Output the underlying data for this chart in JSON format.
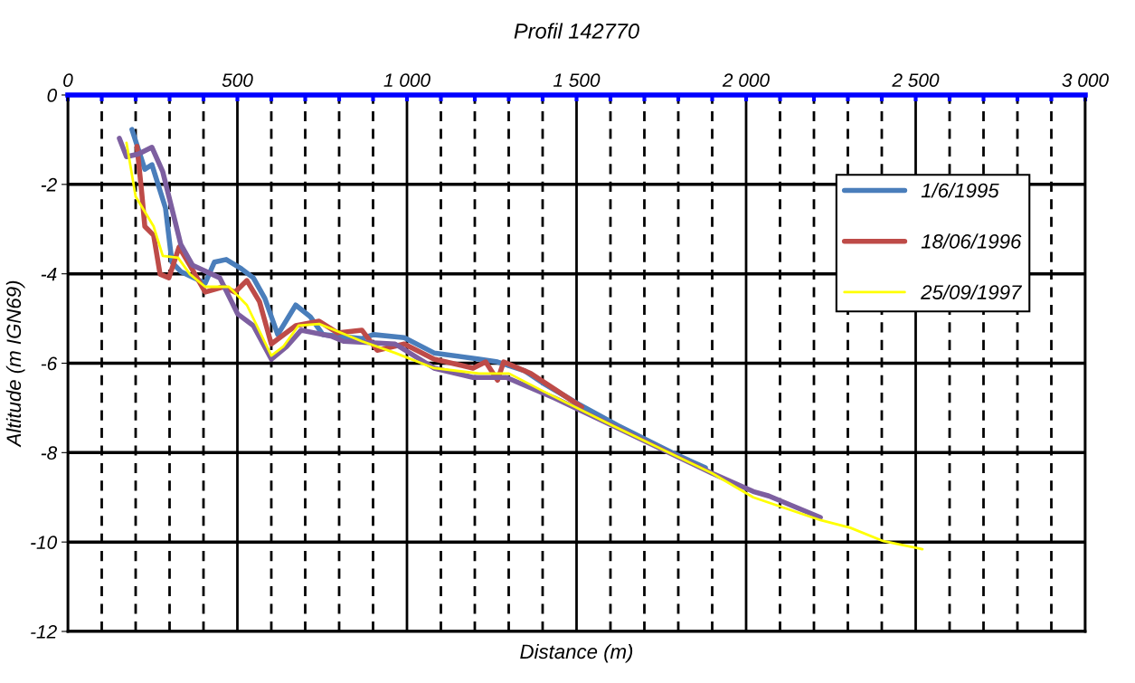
{
  "chart_data": {
    "type": "line",
    "title": "Profil 142770",
    "xlabel": "Distance (m)",
    "ylabel": "Altitude (m IGN69)",
    "xlim": [
      0,
      3000
    ],
    "ylim": [
      -12,
      0
    ],
    "xticks": [
      0,
      {
        "value": 100,
        "label": null
      },
      {
        "value": 200,
        "label": null
      },
      {
        "value": 300,
        "label": null
      },
      {
        "value": 400,
        "label": null
      },
      500,
      {
        "value": 600,
        "label": null
      },
      {
        "value": 700,
        "label": null
      },
      {
        "value": 800,
        "label": null
      },
      {
        "value": 900,
        "label": null
      },
      {
        "value": 1000,
        "label": "1 000"
      },
      {
        "value": 1100,
        "label": null
      },
      {
        "value": 1200,
        "label": null
      },
      {
        "value": 1300,
        "label": null
      },
      {
        "value": 1400,
        "label": null
      },
      {
        "value": 1500,
        "label": "1 500"
      },
      {
        "value": 1600,
        "label": null
      },
      {
        "value": 1700,
        "label": null
      },
      {
        "value": 1800,
        "label": null
      },
      {
        "value": 1900,
        "label": null
      },
      {
        "value": 2000,
        "label": "2 000"
      },
      {
        "value": 2100,
        "label": null
      },
      {
        "value": 2200,
        "label": null
      },
      {
        "value": 2300,
        "label": null
      },
      {
        "value": 2400,
        "label": null
      },
      {
        "value": 2500,
        "label": "2 500"
      },
      {
        "value": 2600,
        "label": null
      },
      {
        "value": 2700,
        "label": null
      },
      {
        "value": 2800,
        "label": null
      },
      {
        "value": 2900,
        "label": null
      },
      {
        "value": 3000,
        "label": "3 000"
      }
    ],
    "yticks": [
      0,
      -2,
      -4,
      -6,
      -8,
      -10,
      -12
    ],
    "grid": true,
    "legend": "top right",
    "marker": "none",
    "line_style": "solid",
    "series": [
      {
        "name": "1/6/1995",
        "color": "#4a7ebb",
        "x": [
          189,
          227,
          248,
          288,
          307,
          333,
          405,
          432,
          467,
          512,
          547,
          581,
          619,
          672,
          715,
          752,
          867,
          901,
          992,
          1080,
          1213,
          1267,
          1347,
          1400,
          1507,
          1621,
          1781,
          1880
        ],
        "values": [
          -0.77,
          -1.66,
          -1.56,
          -2.53,
          -3.74,
          -3.95,
          -4.21,
          -3.74,
          -3.68,
          -3.89,
          -4.09,
          -4.55,
          -5.36,
          -4.7,
          -4.96,
          -5.36,
          -5.45,
          -5.36,
          -5.43,
          -5.77,
          -5.91,
          -5.97,
          -6.17,
          -6.44,
          -6.92,
          -7.39,
          -8.0,
          -8.34
        ]
      },
      {
        "name": "18/06/1996",
        "color": "#be4b48",
        "x": [
          204,
          218,
          227,
          253,
          272,
          298,
          328,
          360,
          405,
          459,
          493,
          528,
          565,
          600,
          672,
          741,
          795,
          867,
          912,
          992,
          1080,
          1195,
          1232,
          1267,
          1285,
          1365,
          1427,
          1515
        ],
        "values": [
          -1.15,
          -2.19,
          -2.94,
          -3.14,
          -4.01,
          -4.09,
          -3.4,
          -3.81,
          -4.41,
          -4.29,
          -4.41,
          -4.15,
          -4.62,
          -5.57,
          -5.16,
          -5.06,
          -5.32,
          -5.26,
          -5.71,
          -5.57,
          -5.91,
          -6.11,
          -5.97,
          -6.38,
          -5.97,
          -6.23,
          -6.54,
          -6.98
        ]
      },
      {
        "name": "25/09/1997",
        "color": "#ffff00",
        "x": [
          173,
          200,
          253,
          280,
          325,
          360,
          405,
          475,
          528,
          600,
          635,
          680,
          741,
          867,
          965,
          1080,
          1213,
          1301,
          1400,
          1605,
          1899,
          2021,
          2219,
          2307,
          2405,
          2520
        ],
        "values": [
          -1.07,
          -2.27,
          -2.94,
          -3.6,
          -3.64,
          -4.01,
          -4.29,
          -4.29,
          -4.7,
          -5.83,
          -5.63,
          -5.16,
          -5.12,
          -5.51,
          -5.77,
          -6.11,
          -6.23,
          -6.23,
          -6.62,
          -7.39,
          -8.46,
          -9.0,
          -9.51,
          -9.68,
          -9.98,
          -10.16
        ]
      },
      {
        "color": "#7d5fa0",
        "x": [
          152,
          173,
          208,
          248,
          280,
          333,
          368,
          448,
          501,
          547,
          600,
          645,
          688,
          779,
          813,
          965,
          1080,
          1195,
          1293,
          1435,
          1605,
          1899,
          2021,
          2067,
          2219
        ],
        "values": [
          -0.97,
          -1.38,
          -1.32,
          -1.17,
          -1.72,
          -3.34,
          -3.81,
          -4.09,
          -4.9,
          -5.16,
          -5.91,
          -5.63,
          -5.26,
          -5.4,
          -5.51,
          -5.57,
          -6.11,
          -6.32,
          -6.32,
          -6.78,
          -7.39,
          -8.46,
          -8.87,
          -8.97,
          -9.45
        ]
      }
    ]
  }
}
